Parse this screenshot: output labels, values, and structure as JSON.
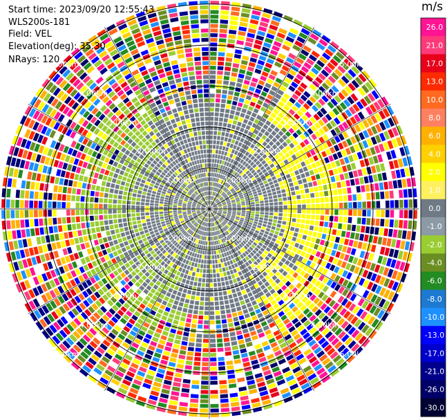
{
  "info": {
    "start_time": "Start time: 2023/09/20 12:55:43",
    "instrument": "WLS200s-181",
    "field": "Field: VEL",
    "elevation": "Elevation(deg): 35.30",
    "nrays": "NRays: 120"
  },
  "colorbar": {
    "unit": "m/s",
    "ticks": [
      "26.0",
      "21.0",
      "17.0",
      "13.0",
      "10.0",
      "8.0",
      "6.0",
      "4.0",
      "2.0",
      "1.0",
      "0.0",
      "-1.0",
      "-2.0",
      "-4.0",
      "-6.0",
      "-8.0",
      "-10.0",
      "-13.0",
      "-17.0",
      "-21.0",
      "-26.0",
      "-30.0"
    ],
    "colors": [
      "#ff1493",
      "#ff3a7a",
      "#e8001a",
      "#ff2a00",
      "#ff6a20",
      "#ff8060",
      "#ffb000",
      "#ffd000",
      "#ffff00",
      "#fff060",
      "#707a85",
      "#8c9aa5",
      "#9acd32",
      "#6b8e23",
      "#228b22",
      "#1e7ad0",
      "#1e90ff",
      "#0000ff",
      "#0000cd",
      "#00008b",
      "#000066",
      "#000033"
    ]
  },
  "chart_data": {
    "type": "heatmap",
    "projection": "polar PPI",
    "field": "VEL",
    "nrays": 120,
    "range_rings_km": [
      1.0,
      2.0,
      3.0,
      4.0,
      5.0
    ],
    "ring_labels": [
      "1.00km",
      "2.00km",
      "3.00km",
      "4.00km",
      "5.00km"
    ],
    "colorbar_range": [
      -30.0,
      26.0
    ],
    "spoke_angles_deg": [
      0,
      30,
      60,
      90,
      120,
      150,
      180,
      210,
      240,
      270,
      300,
      330
    ]
  }
}
